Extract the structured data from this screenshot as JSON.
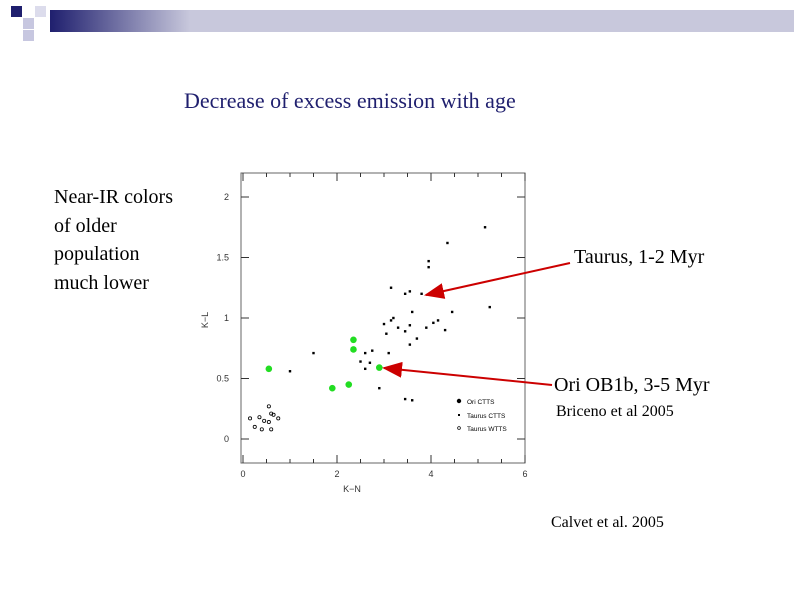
{
  "slide": {
    "title": "Decrease of excess emission with age",
    "left_note": [
      "Near-IR colors",
      "of older",
      "population",
      "much lower"
    ],
    "callout_taurus": "Taurus, 1-2 Myr",
    "callout_ori": "Ori OB1b, 3-5 Myr",
    "citation_briceno": "Briceno et al 2005",
    "citation_calvet": "Calvet et al. 2005",
    "arrow_color": "#cc0000",
    "accent_color": "#1f1f6e"
  },
  "chart_data": {
    "type": "scatter",
    "xlabel": "K−N",
    "ylabel": "K−L",
    "xlim": [
      0,
      6
    ],
    "ylim": [
      0,
      2
    ],
    "x_ticks": [
      "0",
      "2",
      "4",
      "6"
    ],
    "y_ticks": [
      "0",
      "0.5",
      "1",
      "1.5",
      "2"
    ],
    "legend": [
      "Ori CTTS",
      "Taurus CTTS",
      "Taurus WTTS"
    ],
    "legend_position": "bottom-right",
    "series": [
      {
        "name": "Ori CTTS",
        "color": "#22dd22",
        "points": [
          [
            0.55,
            0.58
          ],
          [
            1.9,
            0.42
          ],
          [
            2.25,
            0.45
          ],
          [
            2.35,
            0.82
          ],
          [
            2.35,
            0.74
          ],
          [
            2.9,
            0.59
          ]
        ]
      },
      {
        "name": "Taurus CTTS",
        "color": "#000000",
        "points": [
          [
            1,
            0.56
          ],
          [
            1.5,
            0.71
          ],
          [
            2.6,
            0.71
          ],
          [
            2.7,
            0.63
          ],
          [
            2.75,
            0.73
          ],
          [
            3.1,
            0.71
          ],
          [
            3,
            0.95
          ],
          [
            3.15,
            0.98
          ],
          [
            3.3,
            0.92
          ],
          [
            3.45,
            0.89
          ],
          [
            3.55,
            0.94
          ],
          [
            3.55,
            0.78
          ],
          [
            3.7,
            0.83
          ],
          [
            3.9,
            0.92
          ],
          [
            4.05,
            0.96
          ],
          [
            4.15,
            0.98
          ],
          [
            4.3,
            0.9
          ],
          [
            3.05,
            0.87
          ],
          [
            3.2,
            1.0
          ],
          [
            3.6,
            1.05
          ],
          [
            3.8,
            1.2
          ],
          [
            3.45,
            1.2
          ],
          [
            3.55,
            1.22
          ],
          [
            3.15,
            1.25
          ],
          [
            3.95,
            1.42
          ],
          [
            3.95,
            1.47
          ],
          [
            4.05,
            1.21
          ],
          [
            4.1,
            1.23
          ],
          [
            4.35,
            1.62
          ],
          [
            5.15,
            1.75
          ],
          [
            5.25,
            1.09
          ],
          [
            4.45,
            1.05
          ],
          [
            2.5,
            0.64
          ],
          [
            2.6,
            0.58
          ],
          [
            2.9,
            0.42
          ],
          [
            3.45,
            0.33
          ],
          [
            3.6,
            0.32
          ]
        ]
      },
      {
        "name": "Taurus WTTS",
        "color": "#000000",
        "points": [
          [
            0.15,
            0.17
          ],
          [
            0.25,
            0.1
          ],
          [
            0.35,
            0.18
          ],
          [
            0.4,
            0.08
          ],
          [
            0.45,
            0.15
          ],
          [
            0.55,
            0.14
          ],
          [
            0.6,
            0.21
          ],
          [
            0.65,
            0.2
          ],
          [
            0.75,
            0.17
          ],
          [
            0.55,
            0.27
          ],
          [
            0.6,
            0.08
          ]
        ]
      }
    ]
  }
}
